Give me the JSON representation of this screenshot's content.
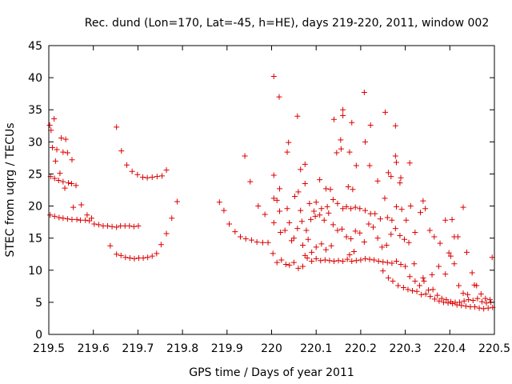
{
  "chart_data": {
    "type": "scatter",
    "title": "Rec. dund (Lon=170, Lat=-45, h=HE), days 219-220, 2011, window 002",
    "xlabel": "GPS time / Days of year 2011",
    "ylabel": "STEC from uqrg / TECUs",
    "xlim": [
      219.5,
      220.5
    ],
    "ylim": [
      0,
      45
    ],
    "xticks": [
      "219.5",
      "219.6",
      "219.7",
      "219.8",
      "219.9",
      "220",
      "220.1",
      "220.2",
      "220.3",
      "220.4",
      "220.5"
    ],
    "yticks": [
      "0",
      "5",
      "10",
      "15",
      "20",
      "25",
      "30",
      "35",
      "40",
      "45"
    ],
    "grid": false,
    "marker": "plus",
    "color": "#dd0000",
    "points": [
      [
        219.502,
        32.6
      ],
      [
        219.505,
        31.8
      ],
      [
        219.512,
        33.6
      ],
      [
        219.508,
        29.1
      ],
      [
        219.518,
        28.8
      ],
      [
        219.528,
        30.6
      ],
      [
        219.532,
        28.4
      ],
      [
        219.538,
        30.4
      ],
      [
        219.542,
        28.3
      ],
      [
        219.552,
        27.2
      ],
      [
        219.515,
        27.0
      ],
      [
        219.504,
        24.6
      ],
      [
        219.513,
        24.3
      ],
      [
        219.522,
        24.0
      ],
      [
        219.525,
        25.1
      ],
      [
        219.532,
        23.8
      ],
      [
        219.536,
        22.8
      ],
      [
        219.544,
        23.6
      ],
      [
        219.551,
        23.5
      ],
      [
        219.561,
        23.2
      ],
      [
        219.503,
        18.6
      ],
      [
        219.513,
        18.4
      ],
      [
        219.523,
        18.2
      ],
      [
        219.532,
        18.1
      ],
      [
        219.542,
        18.0
      ],
      [
        219.552,
        17.9
      ],
      [
        219.555,
        19.8
      ],
      [
        219.563,
        17.9
      ],
      [
        219.571,
        17.8
      ],
      [
        219.573,
        20.2
      ],
      [
        219.582,
        17.8
      ],
      [
        219.586,
        18.6
      ],
      [
        219.591,
        17.7
      ],
      [
        219.596,
        18.1
      ],
      [
        219.602,
        17.2
      ],
      [
        219.612,
        17.1
      ],
      [
        219.622,
        16.9
      ],
      [
        219.632,
        16.9
      ],
      [
        219.642,
        16.8
      ],
      [
        219.652,
        16.7
      ],
      [
        219.661,
        16.9
      ],
      [
        219.671,
        16.9
      ],
      [
        219.681,
        16.9
      ],
      [
        219.691,
        16.8
      ],
      [
        219.701,
        16.9
      ],
      [
        219.638,
        13.8
      ],
      [
        219.652,
        12.5
      ],
      [
        219.662,
        12.3
      ],
      [
        219.672,
        12.0
      ],
      [
        219.682,
        11.9
      ],
      [
        219.692,
        11.8
      ],
      [
        219.702,
        11.9
      ],
      [
        219.712,
        11.9
      ],
      [
        219.722,
        12.0
      ],
      [
        219.732,
        12.2
      ],
      [
        219.742,
        12.6
      ],
      [
        219.752,
        14.0
      ],
      [
        219.764,
        15.7
      ],
      [
        219.776,
        18.1
      ],
      [
        219.788,
        20.7
      ],
      [
        219.652,
        32.3
      ],
      [
        219.663,
        28.6
      ],
      [
        219.675,
        26.4
      ],
      [
        219.687,
        25.4
      ],
      [
        219.699,
        24.9
      ],
      [
        219.711,
        24.5
      ],
      [
        219.721,
        24.4
      ],
      [
        219.732,
        24.5
      ],
      [
        219.743,
        24.6
      ],
      [
        219.754,
        24.7
      ],
      [
        219.764,
        25.6
      ],
      [
        219.883,
        20.6
      ],
      [
        219.893,
        19.3
      ],
      [
        219.905,
        17.2
      ],
      [
        219.918,
        16.0
      ],
      [
        219.93,
        15.2
      ],
      [
        219.942,
        14.9
      ],
      [
        219.955,
        14.7
      ],
      [
        219.967,
        14.4
      ],
      [
        219.98,
        14.3
      ],
      [
        219.992,
        14.3
      ],
      [
        219.94,
        27.8
      ],
      [
        219.952,
        23.8
      ],
      [
        219.97,
        20.0
      ],
      [
        219.985,
        18.7
      ],
      [
        220.005,
        40.2
      ],
      [
        220.017,
        37.0
      ],
      [
        220.058,
        34.0
      ],
      [
        220.208,
        37.7
      ],
      [
        220.255,
        34.6
      ],
      [
        220.16,
        35.0
      ],
      [
        220.16,
        34.1
      ],
      [
        220.14,
        33.5
      ],
      [
        220.18,
        33.0
      ],
      [
        220.222,
        32.6
      ],
      [
        220.278,
        32.5
      ],
      [
        220.038,
        29.9
      ],
      [
        220.035,
        28.4
      ],
      [
        220.155,
        30.3
      ],
      [
        220.146,
        28.3
      ],
      [
        220.21,
        30.0
      ],
      [
        220.156,
        28.9
      ],
      [
        220.175,
        28.4
      ],
      [
        220.278,
        27.8
      ],
      [
        220.28,
        26.8
      ],
      [
        220.31,
        26.7
      ],
      [
        220.065,
        25.7
      ],
      [
        220.005,
        24.8
      ],
      [
        220.075,
        26.5
      ],
      [
        220.19,
        26.3
      ],
      [
        220.262,
        25.2
      ],
      [
        220.268,
        24.6
      ],
      [
        220.288,
        23.6
      ],
      [
        220.29,
        24.4
      ],
      [
        220.238,
        23.9
      ],
      [
        220.108,
        24.1
      ],
      [
        220.122,
        22.7
      ],
      [
        220.132,
        22.6
      ],
      [
        220.172,
        23.0
      ],
      [
        220.182,
        22.6
      ],
      [
        220.018,
        22.7
      ],
      [
        220.06,
        22.2
      ],
      [
        220.075,
        23.5
      ],
      [
        220.052,
        21.5
      ],
      [
        220.005,
        21.2
      ],
      [
        220.012,
        20.9
      ],
      [
        220.018,
        19.2
      ],
      [
        220.035,
        19.6
      ],
      [
        220.065,
        19.3
      ],
      [
        220.085,
        20.4
      ],
      [
        220.095,
        19.2
      ],
      [
        220.1,
        20.6
      ],
      [
        220.112,
        19.6
      ],
      [
        220.125,
        19.9
      ],
      [
        220.138,
        21.0
      ],
      [
        220.148,
        20.4
      ],
      [
        220.16,
        19.6
      ],
      [
        220.168,
        19.9
      ],
      [
        220.178,
        19.6
      ],
      [
        220.188,
        19.8
      ],
      [
        220.198,
        19.6
      ],
      [
        220.21,
        19.3
      ],
      [
        220.222,
        18.8
      ],
      [
        220.232,
        18.8
      ],
      [
        220.244,
        18.0
      ],
      [
        220.254,
        21.2
      ],
      [
        220.26,
        18.2
      ],
      [
        220.27,
        17.8
      ],
      [
        220.28,
        19.9
      ],
      [
        220.292,
        19.5
      ],
      [
        220.302,
        17.8
      ],
      [
        220.312,
        20.0
      ],
      [
        220.322,
        15.9
      ],
      [
        220.334,
        19.0
      ],
      [
        220.345,
        19.6
      ],
      [
        220.34,
        20.8
      ],
      [
        220.355,
        16.2
      ],
      [
        220.365,
        15.2
      ],
      [
        220.378,
        14.2
      ],
      [
        220.39,
        17.8
      ],
      [
        220.405,
        17.9
      ],
      [
        220.41,
        15.2
      ],
      [
        220.418,
        15.2
      ],
      [
        220.43,
        19.8
      ],
      [
        220.22,
        26.3
      ],
      [
        220.005,
        17.4
      ],
      [
        220.02,
        15.9
      ],
      [
        220.03,
        16.2
      ],
      [
        220.04,
        17.4
      ],
      [
        220.05,
        15.0
      ],
      [
        220.058,
        16.5
      ],
      [
        220.068,
        17.6
      ],
      [
        220.078,
        16.2
      ],
      [
        220.088,
        17.9
      ],
      [
        220.098,
        18.4
      ],
      [
        220.108,
        18.6
      ],
      [
        220.118,
        17.8
      ],
      [
        220.128,
        18.9
      ],
      [
        220.138,
        17.1
      ],
      [
        220.148,
        16.2
      ],
      [
        220.158,
        16.4
      ],
      [
        220.168,
        15.2
      ],
      [
        220.178,
        14.9
      ],
      [
        220.188,
        16.1
      ],
      [
        220.198,
        15.8
      ],
      [
        220.208,
        14.4
      ],
      [
        220.218,
        17.2
      ],
      [
        220.228,
        16.7
      ],
      [
        220.238,
        15.0
      ],
      [
        220.248,
        13.6
      ],
      [
        220.258,
        13.9
      ],
      [
        220.268,
        15.6
      ],
      [
        220.278,
        16.5
      ],
      [
        220.288,
        15.4
      ],
      [
        220.298,
        14.8
      ],
      [
        220.308,
        14.3
      ],
      [
        220.045,
        14.6
      ],
      [
        220.07,
        13.9
      ],
      [
        220.082,
        14.8
      ],
      [
        220.1,
        13.6
      ],
      [
        220.112,
        14.1
      ],
      [
        220.122,
        13.2
      ],
      [
        220.134,
        13.8
      ],
      [
        220.003,
        12.6
      ],
      [
        220.012,
        11.2
      ],
      [
        220.022,
        11.6
      ],
      [
        220.032,
        10.9
      ],
      [
        220.04,
        10.8
      ],
      [
        220.05,
        11.2
      ],
      [
        220.06,
        10.3
      ],
      [
        220.07,
        10.6
      ],
      [
        220.08,
        11.9
      ],
      [
        220.09,
        11.4
      ],
      [
        220.1,
        11.8
      ],
      [
        220.11,
        11.5
      ],
      [
        220.12,
        11.6
      ],
      [
        220.13,
        11.5
      ],
      [
        220.14,
        11.4
      ],
      [
        220.15,
        11.5
      ],
      [
        220.16,
        11.4
      ],
      [
        220.17,
        11.7
      ],
      [
        220.18,
        11.4
      ],
      [
        220.19,
        11.5
      ],
      [
        220.2,
        11.6
      ],
      [
        220.21,
        11.8
      ],
      [
        220.22,
        11.7
      ],
      [
        220.23,
        11.6
      ],
      [
        220.24,
        11.4
      ],
      [
        220.25,
        11.3
      ],
      [
        220.26,
        11.2
      ],
      [
        220.27,
        11.1
      ],
      [
        220.28,
        11.4
      ],
      [
        220.29,
        10.9
      ],
      [
        220.075,
        12.3
      ],
      [
        220.09,
        12.8
      ],
      [
        220.175,
        12.4
      ],
      [
        220.185,
        12.9
      ],
      [
        220.25,
        9.9
      ],
      [
        220.262,
        8.8
      ],
      [
        220.272,
        8.3
      ],
      [
        220.284,
        7.6
      ],
      [
        220.296,
        7.3
      ],
      [
        220.306,
        7.0
      ],
      [
        220.316,
        6.8
      ],
      [
        220.326,
        6.7
      ],
      [
        220.336,
        6.2
      ],
      [
        220.346,
        6.3
      ],
      [
        220.356,
        5.9
      ],
      [
        220.366,
        5.5
      ],
      [
        220.376,
        5.2
      ],
      [
        220.386,
        5.0
      ],
      [
        220.396,
        4.9
      ],
      [
        220.406,
        4.8
      ],
      [
        220.416,
        4.6
      ],
      [
        220.426,
        4.5
      ],
      [
        220.436,
        4.4
      ],
      [
        220.446,
        4.3
      ],
      [
        220.456,
        4.3
      ],
      [
        220.466,
        4.1
      ],
      [
        220.476,
        4.0
      ],
      [
        220.486,
        4.1
      ],
      [
        220.496,
        4.2
      ],
      [
        220.31,
        9.0
      ],
      [
        220.322,
        8.3
      ],
      [
        220.332,
        7.6
      ],
      [
        220.342,
        8.3
      ],
      [
        220.352,
        6.9
      ],
      [
        220.362,
        7.0
      ],
      [
        220.372,
        6.1
      ],
      [
        220.382,
        5.6
      ],
      [
        220.392,
        5.4
      ],
      [
        220.402,
        5.1
      ],
      [
        220.412,
        5.0
      ],
      [
        220.422,
        5.0
      ],
      [
        220.432,
        5.2
      ],
      [
        220.442,
        5.4
      ],
      [
        220.452,
        5.3
      ],
      [
        220.462,
        5.6
      ],
      [
        220.472,
        5.1
      ],
      [
        220.482,
        4.9
      ],
      [
        220.492,
        5.0
      ],
      [
        220.3,
        10.6
      ],
      [
        220.32,
        11.0
      ],
      [
        220.34,
        8.8
      ],
      [
        220.36,
        9.3
      ],
      [
        220.375,
        10.6
      ],
      [
        220.39,
        9.4
      ],
      [
        220.398,
        12.7
      ],
      [
        220.402,
        12.2
      ],
      [
        220.41,
        11.0
      ],
      [
        220.42,
        7.6
      ],
      [
        220.43,
        6.4
      ],
      [
        220.44,
        6.2
      ],
      [
        220.45,
        9.6
      ],
      [
        220.46,
        7.6
      ],
      [
        220.47,
        6.3
      ],
      [
        220.48,
        5.6
      ],
      [
        220.49,
        5.4
      ],
      [
        220.495,
        12.0
      ],
      [
        220.438,
        12.8
      ],
      [
        220.455,
        7.7
      ]
    ]
  }
}
